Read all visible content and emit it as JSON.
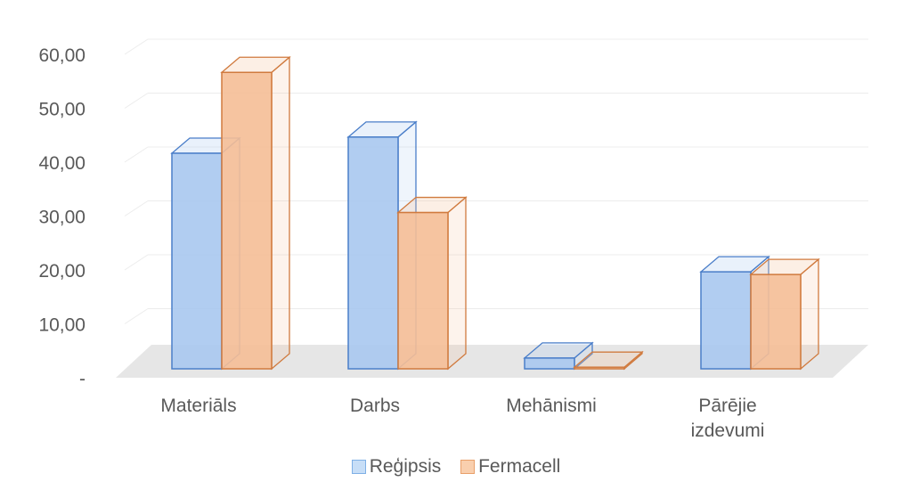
{
  "chart_data": {
    "type": "bar",
    "style": "3d-clustered-column",
    "categories": [
      "Materiāls",
      "Darbs",
      "Mehānismi",
      "Pārējie izdevumi"
    ],
    "category_lines": [
      [
        "Materiāls"
      ],
      [
        "Darbs"
      ],
      [
        "Mehānismi"
      ],
      [
        "Pārējie",
        "izdevumi"
      ]
    ],
    "series": [
      {
        "name": "Reģipsis",
        "values": [
          40.0,
          43.0,
          2.0,
          18.0
        ],
        "color": "#a9c8f0",
        "edge": "#4a7ec9"
      },
      {
        "name": "Fermacell",
        "values": [
          55.0,
          29.0,
          0.3,
          17.5
        ],
        "color": "#f5be96",
        "edge": "#d07a3e"
      }
    ],
    "ylim": [
      0,
      60
    ],
    "yticks": [
      0,
      10,
      20,
      30,
      40,
      50,
      60
    ],
    "ytick_labels": [
      "-",
      "10,00",
      "20,00",
      "30,00",
      "40,00",
      "50,00",
      "60,00"
    ],
    "grid": true,
    "legend_position": "bottom"
  }
}
